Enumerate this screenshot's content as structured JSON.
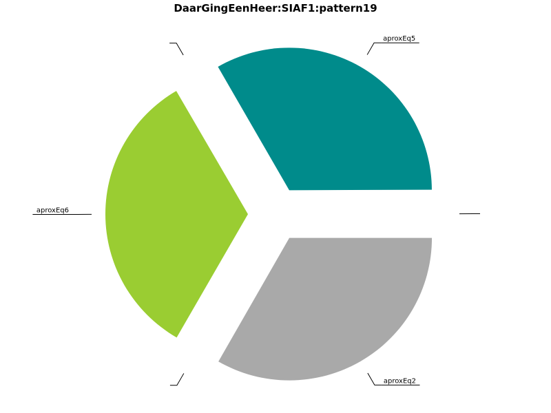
{
  "chart_data": {
    "type": "pie",
    "title": "DaarGingEenHeer:SIAF1:pattern19",
    "slices": [
      {
        "label": "aproxEq2",
        "value": 33.3,
        "color": "#a9a9a9",
        "exploded": true
      },
      {
        "label": "",
        "value": 0.05,
        "color": "#ffffff",
        "exploded": true
      },
      {
        "label": "aproxEq6",
        "value": 33.3,
        "color": "#9acd32",
        "exploded": true
      },
      {
        "label": "",
        "value": 0.05,
        "color": "#ffffff",
        "exploded": true
      },
      {
        "label": "aproxEq5",
        "value": 33.3,
        "color": "#008b8b",
        "exploded": true
      },
      {
        "label": "",
        "value": 0.05,
        "color": "#ffffff",
        "exploded": true
      }
    ]
  }
}
